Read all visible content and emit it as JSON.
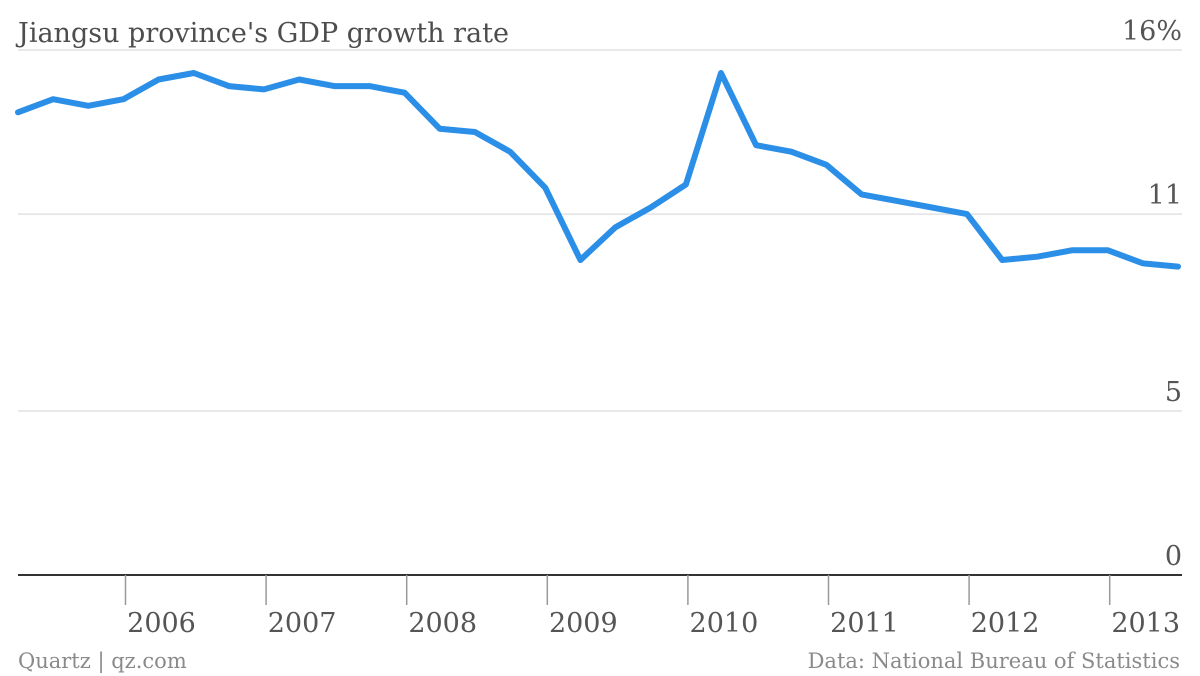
{
  "chart_data": {
    "type": "line",
    "title": "Jiangsu province's GDP growth rate",
    "xlabel": "",
    "ylabel": "",
    "y_unit": "%",
    "ylim": [
      0,
      16
    ],
    "y_ticks": [
      {
        "value": 16,
        "label": "16%"
      },
      {
        "value": 11,
        "label": "11"
      },
      {
        "value": 5,
        "label": "5"
      },
      {
        "value": 0,
        "label": "0"
      }
    ],
    "x_ticks": [
      "2006",
      "2007",
      "2008",
      "2009",
      "2010",
      "2011",
      "2012",
      "2013"
    ],
    "grid": true,
    "series": [
      {
        "color": "#2b8fe8",
        "points": [
          {
            "x": "2005-Q2",
            "y": 14.1
          },
          {
            "x": "2005-Q3",
            "y": 14.5
          },
          {
            "x": "2005-Q4",
            "y": 14.3
          },
          {
            "x": "2006-Q1",
            "y": 14.5
          },
          {
            "x": "2006-Q2",
            "y": 15.1
          },
          {
            "x": "2006-Q3",
            "y": 15.3
          },
          {
            "x": "2006-Q4",
            "y": 14.9
          },
          {
            "x": "2007-Q1",
            "y": 14.8
          },
          {
            "x": "2007-Q2",
            "y": 15.1
          },
          {
            "x": "2007-Q3",
            "y": 14.9
          },
          {
            "x": "2007-Q4",
            "y": 14.9
          },
          {
            "x": "2008-Q1",
            "y": 14.7
          },
          {
            "x": "2008-Q2",
            "y": 13.6
          },
          {
            "x": "2008-Q3",
            "y": 13.5
          },
          {
            "x": "2008-Q4",
            "y": 12.9
          },
          {
            "x": "2009-Q1",
            "y": 11.8
          },
          {
            "x": "2009-Q2",
            "y": 9.6
          },
          {
            "x": "2009-Q3",
            "y": 10.6
          },
          {
            "x": "2009-Q4",
            "y": 11.2
          },
          {
            "x": "2010-Q1",
            "y": 11.9
          },
          {
            "x": "2010-Q2",
            "y": 15.3
          },
          {
            "x": "2010-Q3",
            "y": 13.1
          },
          {
            "x": "2010-Q4",
            "y": 12.9
          },
          {
            "x": "2011-Q1",
            "y": 12.5
          },
          {
            "x": "2011-Q2",
            "y": 11.6
          },
          {
            "x": "2011-Q3",
            "y": 11.4
          },
          {
            "x": "2011-Q4",
            "y": 11.2
          },
          {
            "x": "2012-Q1",
            "y": 11.0
          },
          {
            "x": "2012-Q2",
            "y": 9.6
          },
          {
            "x": "2012-Q3",
            "y": 9.7
          },
          {
            "x": "2012-Q4",
            "y": 9.9
          },
          {
            "x": "2013-Q1",
            "y": 9.9
          },
          {
            "x": "2013-Q2",
            "y": 9.5
          },
          {
            "x": "2013-Q3",
            "y": 9.4
          }
        ]
      }
    ]
  },
  "footer": {
    "credit": "Quartz | qz.com",
    "source": "Data: National Bureau of Statistics"
  }
}
